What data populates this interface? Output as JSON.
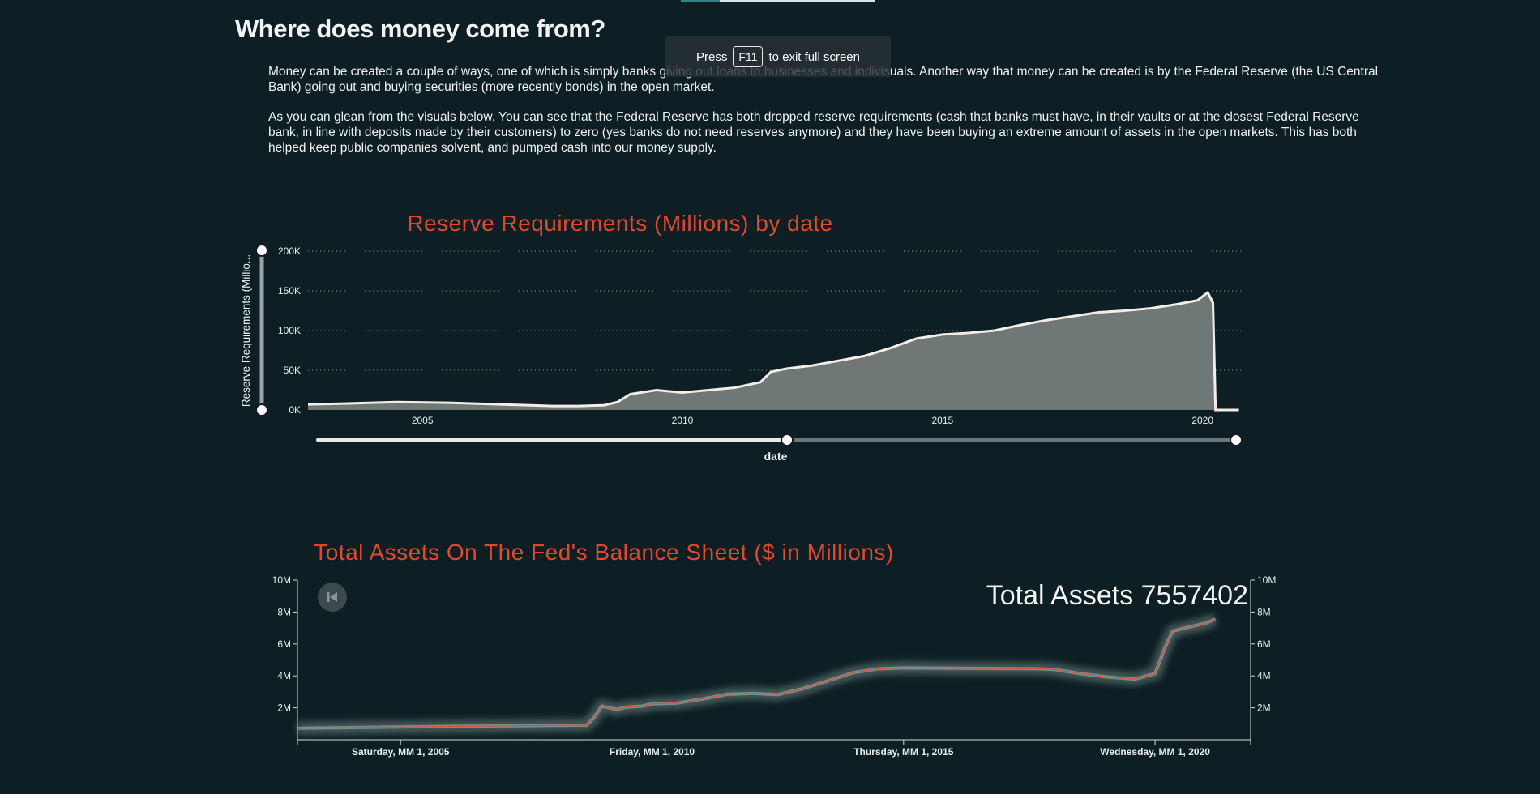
{
  "header": {
    "title": "Where does money come from?",
    "paragraph1": "Money can be created a couple of ways, one of which is simply banks giving out loans to businesses and indivisuals. Another way that money can be created is by the Federal Reserve (the US Central Bank) going out and buying securities (more recently bonds) in the open market.",
    "paragraph2": "As you can glean from the visuals below. You can see that the Federal Reserve has both dropped reserve requirements (cash that banks must have, in their vaults or at the closest Federal Reserve bank, in line with deposits made by their customers) to zero (yes banks do not need reserves anymore) and they have been buying an extreme amount of assets in the open markets. This has both helped keep public companies solvent, and pumped cash into our money supply."
  },
  "fullscreen_notice": {
    "press": "Press",
    "key": "F11",
    "suffix": "to exit full screen"
  },
  "colors": {
    "background": "#0d1f24",
    "title_accent": "#e0492b",
    "area_fill": "#6f7876",
    "line": "#f4ece6",
    "assets_line": "#e0492b"
  },
  "chart_data": [
    {
      "type": "area",
      "title": "Reserve Requirements (Millions) by date",
      "xlabel": "date",
      "ylabel": "Reserve Requirements (Millio...",
      "xlim": [
        2002.8,
        2020.8
      ],
      "ylim": [
        0,
        200000
      ],
      "y_ticks": [
        "0K",
        "50K",
        "100K",
        "150K",
        "200K"
      ],
      "x_ticks": [
        "2005",
        "2010",
        "2015",
        "2020"
      ],
      "grid": "horizontal dotted",
      "x": [
        2002.8,
        2003.5,
        2004.5,
        2005.5,
        2006.5,
        2007.5,
        2008.0,
        2008.5,
        2008.75,
        2009.0,
        2009.5,
        2010.0,
        2010.5,
        2011.0,
        2011.5,
        2011.7,
        2012.0,
        2012.5,
        2013.0,
        2013.5,
        2014.0,
        2014.5,
        2015.0,
        2015.5,
        2016.0,
        2016.5,
        2017.0,
        2017.5,
        2018.0,
        2018.5,
        2019.0,
        2019.5,
        2019.9,
        2020.1,
        2020.2,
        2020.25,
        2020.7
      ],
      "values": [
        7000,
        8000,
        10000,
        9000,
        7000,
        5000,
        5000,
        6000,
        10000,
        20000,
        25000,
        22000,
        25000,
        28000,
        35000,
        48000,
        52000,
        56000,
        62000,
        68000,
        78000,
        90000,
        95000,
        97000,
        100000,
        107000,
        113000,
        118000,
        123000,
        125000,
        128000,
        133000,
        138000,
        148000,
        135000,
        0,
        0
      ],
      "slider": {
        "label": "date",
        "range": [
          2012.0,
          2020.8
        ]
      },
      "y_slider": {
        "range": [
          0,
          200000
        ]
      }
    },
    {
      "type": "line",
      "title": "Total Assets On The Fed's Balance Sheet ($ in Millions)",
      "annotation": "Total Assets 7557402",
      "ylim": [
        0,
        10000000
      ],
      "y_ticks": [
        "2M",
        "4M",
        "6M",
        "8M",
        "10M"
      ],
      "x_ticks": [
        "Saturday, MM 1, 2005",
        "Friday, MM 1, 2010",
        "Thursday, MM 1, 2015",
        "Wednesday, MM 1, 2020"
      ],
      "x": [
        2002.95,
        2004.0,
        2005.0,
        2006.0,
        2007.0,
        2008.0,
        2008.7,
        2008.85,
        2009.0,
        2009.3,
        2009.5,
        2009.8,
        2010.0,
        2010.5,
        2011.0,
        2011.5,
        2012.0,
        2012.5,
        2013.0,
        2013.5,
        2014.0,
        2014.5,
        2015.0,
        2016.0,
        2017.0,
        2017.7,
        2018.0,
        2018.5,
        2019.0,
        2019.6,
        2020.0,
        2020.2,
        2020.35,
        2020.6,
        2021.0,
        2021.2
      ],
      "values": [
        720000,
        760000,
        800000,
        840000,
        870000,
        900000,
        920000,
        1400000,
        2100000,
        1900000,
        2050000,
        2100000,
        2250000,
        2300000,
        2550000,
        2850000,
        2900000,
        2830000,
        3200000,
        3700000,
        4200000,
        4450000,
        4500000,
        4480000,
        4460000,
        4450000,
        4400000,
        4150000,
        3950000,
        3800000,
        4150000,
        5800000,
        6800000,
        7000000,
        7300000,
        7557402
      ]
    }
  ]
}
